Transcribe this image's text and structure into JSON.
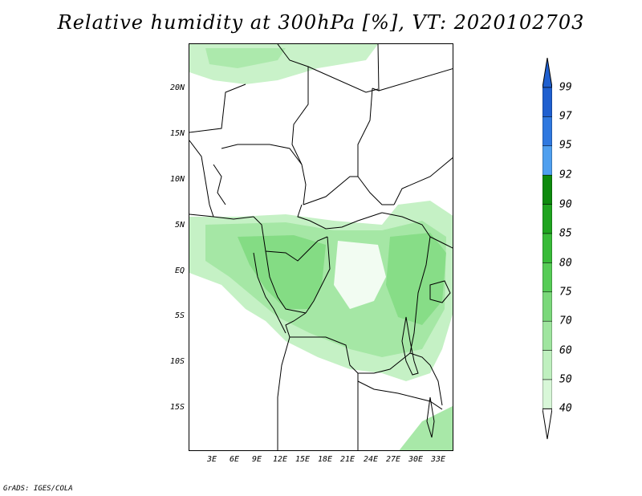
{
  "title": "Relative humidity at 300hPa [%], VT: 2020102703",
  "footer": "GrADS: IGES/COLA",
  "lat_labels": [
    "20N",
    "15N",
    "10N",
    "5N",
    "EQ",
    "5S",
    "10S",
    "15S"
  ],
  "lon_labels": [
    "3E",
    "6E",
    "9E",
    "12E",
    "15E",
    "18E",
    "21E",
    "24E",
    "27E",
    "30E",
    "33E"
  ],
  "colorbar": {
    "levels": [
      "99",
      "97",
      "95",
      "92",
      "90",
      "85",
      "80",
      "75",
      "70",
      "60",
      "50",
      "40"
    ],
    "colors": {
      "99": "#1f5fcf",
      "97": "#2f78df",
      "95": "#4f9fef",
      "92": "#0d8a0d",
      "90": "#1fa41f",
      "85": "#38bb38",
      "80": "#56cc56",
      "75": "#7ad87a",
      "70": "#9fe59f",
      "60": "#bff0bf",
      "50": "#d8f7d8",
      "40": "#eefdee",
      "below": "#ffffff"
    }
  },
  "colors": {
    "land_outline": "#000000",
    "background": "#ffffff"
  }
}
